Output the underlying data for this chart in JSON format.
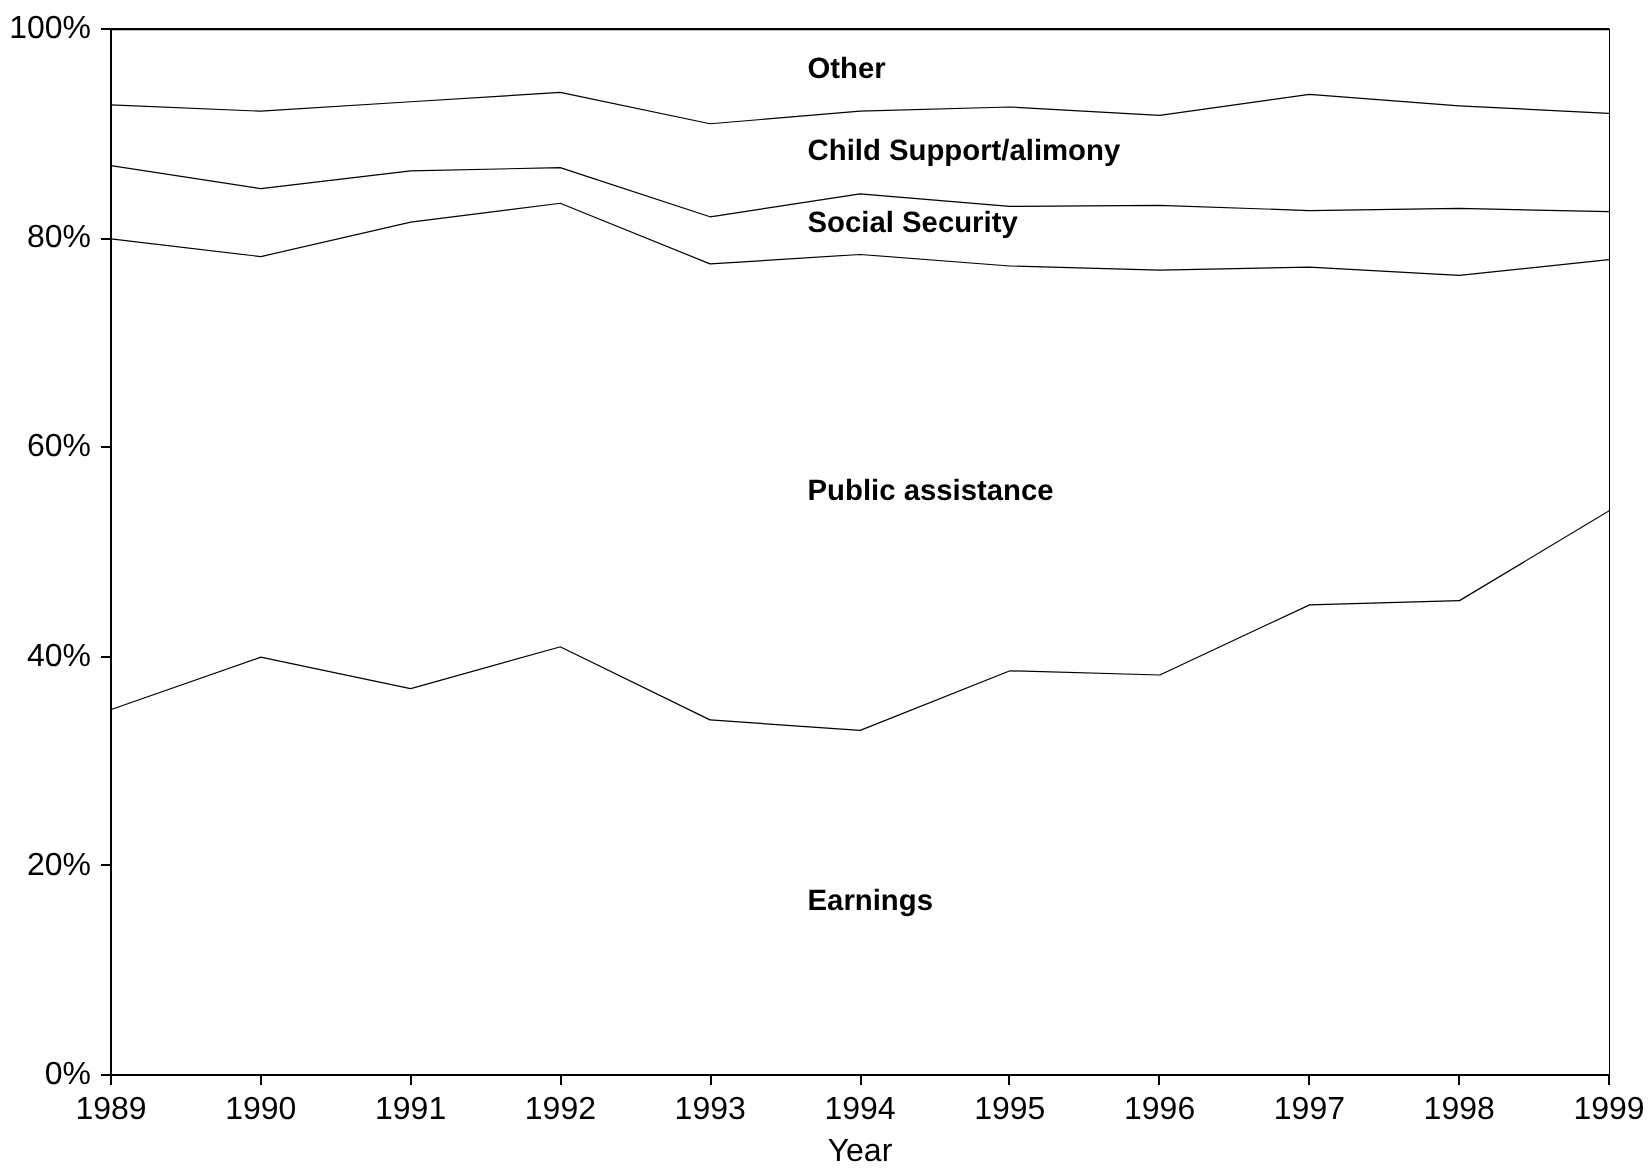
{
  "chart_data": {
    "type": "area",
    "stacked": true,
    "xlabel": "Year",
    "x": [
      1989,
      1990,
      1991,
      1992,
      1993,
      1994,
      1995,
      1996,
      1997,
      1998,
      1999
    ],
    "series": [
      {
        "name": "Earnings",
        "color": "#ffffff",
        "values": [
          35,
          40,
          37,
          41,
          34,
          33,
          38.7,
          38.3,
          45,
          45.4,
          54
        ]
      },
      {
        "name": "Public assistance",
        "color": "#ffffff",
        "values": [
          45,
          38.3,
          44.6,
          42.4,
          43.6,
          45.5,
          38.7,
          38.7,
          32.3,
          31.1,
          24
        ]
      },
      {
        "name": "Social Security",
        "color": "#ffffff",
        "values": [
          7,
          6.5,
          4.9,
          3.4,
          4.5,
          5.8,
          5.7,
          6.2,
          5.4,
          6.4,
          4.6
        ]
      },
      {
        "name": "Child Support/alimony",
        "color": "#ffffff",
        "values": [
          5.8,
          7.4,
          6.6,
          7.2,
          8.9,
          7.9,
          9.5,
          8.6,
          11.1,
          9.8,
          9.4
        ]
      },
      {
        "name": "Other",
        "color": "#ffffff",
        "values": [
          7.2,
          7.8,
          6.9,
          6,
          9,
          7.8,
          7.4,
          8.2,
          6.2,
          7.3,
          8
        ]
      }
    ],
    "xlim": [
      1989,
      1999
    ],
    "xticks": [
      1989,
      1990,
      1991,
      1992,
      1993,
      1994,
      1995,
      1996,
      1997,
      1998,
      1999
    ],
    "ylim": [
      0,
      100
    ],
    "yticks": [
      {
        "value": 0,
        "label": "0%"
      },
      {
        "value": 20,
        "label": "20%"
      },
      {
        "value": 40,
        "label": "40%"
      },
      {
        "value": 60,
        "label": "60%"
      },
      {
        "value": 80,
        "label": "80%"
      },
      {
        "value": 100,
        "label": "100%"
      }
    ],
    "legend": false
  }
}
